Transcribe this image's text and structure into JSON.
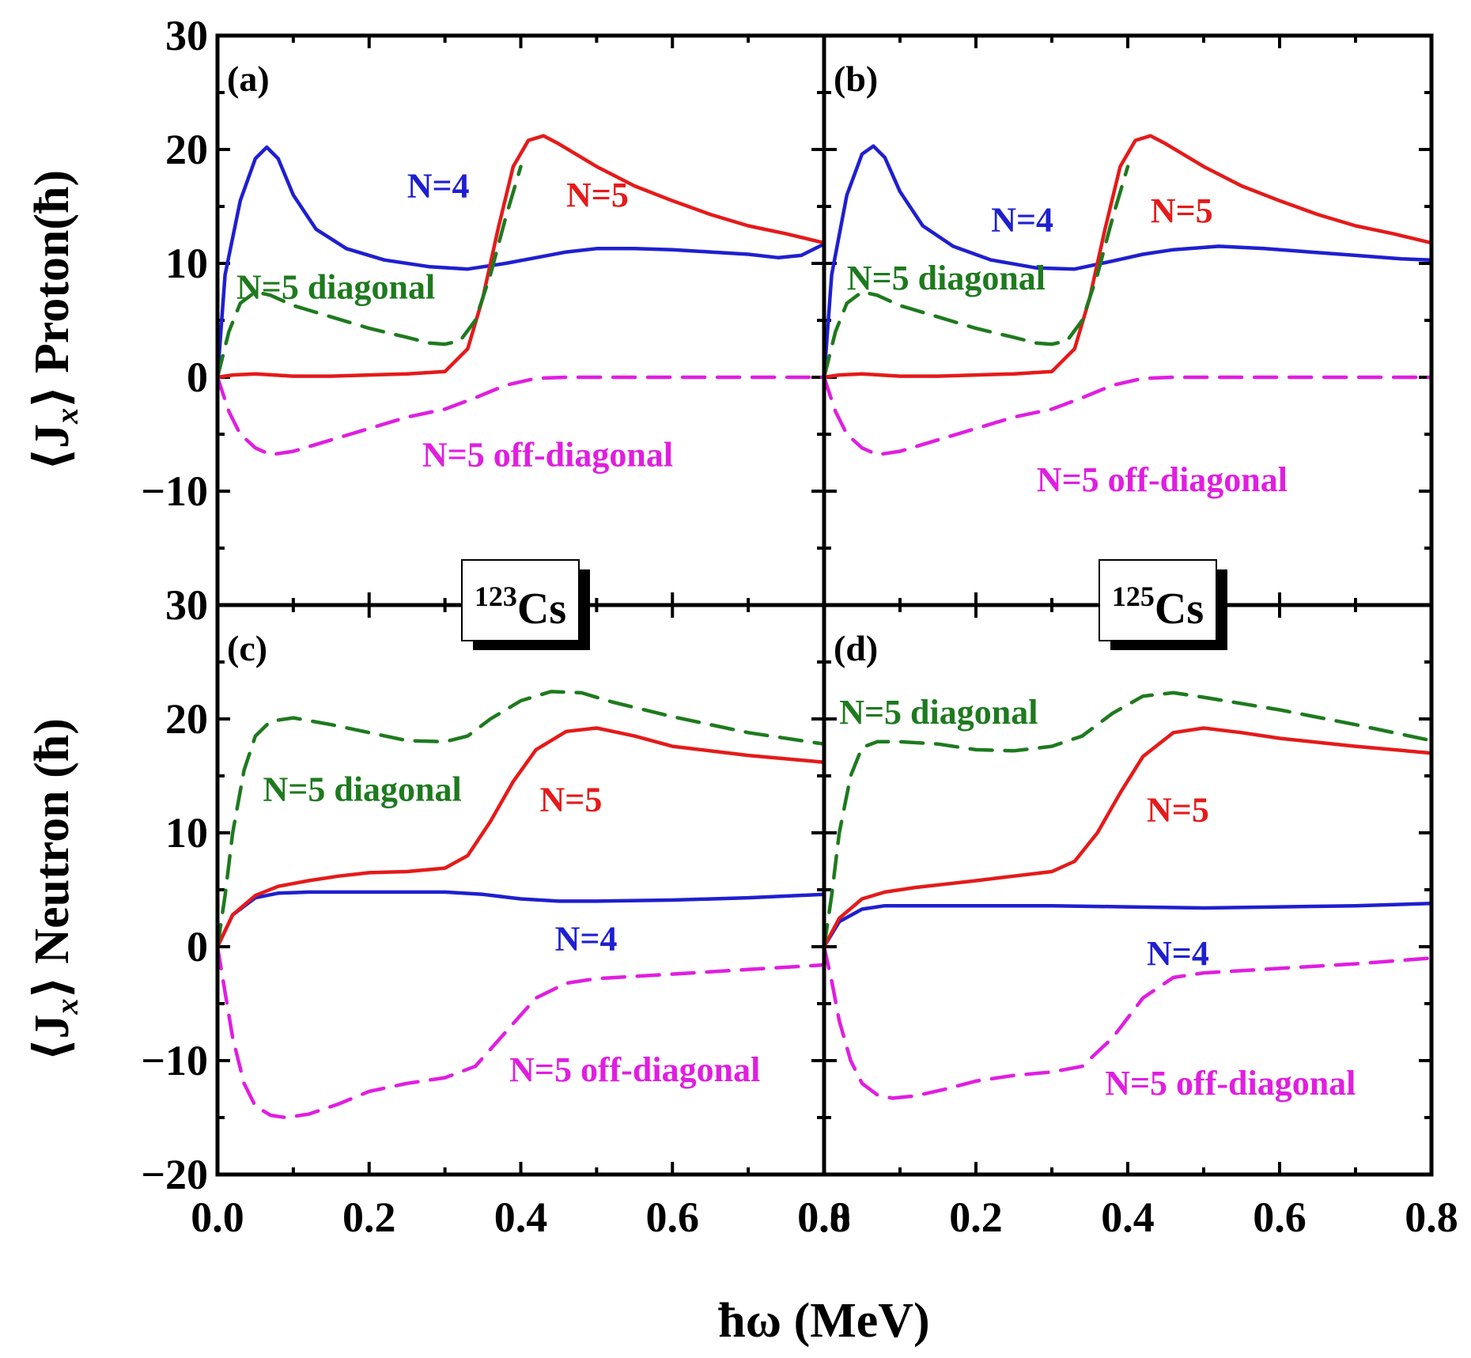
{
  "figure": {
    "x_title": "ħω (MeV)",
    "y_title_top": {
      "angle_expr": "⟨J",
      "sub": "x",
      "close": "⟩",
      "rest": " Proton(ħ)"
    },
    "y_title_bottom": {
      "angle_expr": "⟨J",
      "sub": "x",
      "close": "⟩",
      "rest": " Neutron (ħ)"
    },
    "nuclei": [
      {
        "mass": "123",
        "symbol": "Cs"
      },
      {
        "mass": "125",
        "symbol": "Cs"
      }
    ]
  },
  "colors": {
    "N=4": "#1f1fd0",
    "N=5": "#e51a1a",
    "N=5 diagonal": "#1e7a1e",
    "N=5 off-diagonal": "#e01ee0"
  },
  "chart_data": [
    {
      "panel": "(a)",
      "type": "line",
      "xlim": [
        0,
        0.8
      ],
      "ylim": [
        -20,
        30
      ],
      "xticks": [
        0.0,
        0.2,
        0.4,
        0.6,
        0.8
      ],
      "yticks": [
        30,
        20,
        10,
        0,
        -10
      ],
      "xlabel": "",
      "ylabel": "⟨Jx⟩ Proton(ħ)",
      "series": [
        {
          "name": "N=4",
          "style": "solid",
          "label_at": [
            0.25,
            15.8
          ],
          "x": [
            0,
            0.01,
            0.03,
            0.05,
            0.065,
            0.08,
            0.1,
            0.13,
            0.17,
            0.22,
            0.28,
            0.33,
            0.38,
            0.42,
            0.46,
            0.5,
            0.55,
            0.6,
            0.65,
            0.7,
            0.74,
            0.77,
            0.8
          ],
          "y": [
            0,
            9,
            15.5,
            19.2,
            20.2,
            19.2,
            16,
            13,
            11.3,
            10.3,
            9.7,
            9.5,
            10,
            10.5,
            11,
            11.3,
            11.3,
            11.2,
            11,
            10.8,
            10.5,
            10.7,
            11.7
          ]
        },
        {
          "name": "N=5",
          "style": "solid",
          "label_at": [
            0.46,
            15.0
          ],
          "x": [
            0,
            0.02,
            0.05,
            0.1,
            0.15,
            0.2,
            0.25,
            0.3,
            0.33,
            0.35,
            0.37,
            0.39,
            0.41,
            0.43,
            0.45,
            0.5,
            0.55,
            0.6,
            0.65,
            0.7,
            0.75,
            0.8
          ],
          "y": [
            0,
            0.2,
            0.3,
            0.1,
            0.1,
            0.2,
            0.3,
            0.5,
            2.5,
            7,
            13,
            18.5,
            20.8,
            21.2,
            20.5,
            18.5,
            16.8,
            15.5,
            14.3,
            13.3,
            12.6,
            11.8
          ]
        },
        {
          "name": "N=5 diagonal",
          "style": "dashed",
          "label_at": [
            0.025,
            6.9
          ],
          "x": [
            0,
            0.015,
            0.03,
            0.05,
            0.07,
            0.1,
            0.15,
            0.2,
            0.25,
            0.28,
            0.3,
            0.32,
            0.34,
            0.36,
            0.38,
            0.4
          ],
          "y": [
            0,
            4,
            6.5,
            7.5,
            7.2,
            6.3,
            5.3,
            4.3,
            3.5,
            3.0,
            2.9,
            3.2,
            5,
            9,
            14,
            18.5
          ]
        },
        {
          "name": "N=5 off-diagonal",
          "style": "dashed",
          "label_at": [
            0.27,
            -7.8
          ],
          "x": [
            0,
            0.015,
            0.03,
            0.05,
            0.07,
            0.1,
            0.15,
            0.2,
            0.25,
            0.3,
            0.34,
            0.38,
            0.42,
            0.46,
            0.5,
            0.6,
            0.7,
            0.8
          ],
          "y": [
            0,
            -3,
            -5,
            -6.2,
            -6.8,
            -6.5,
            -5.5,
            -4.5,
            -3.5,
            -2.8,
            -1.8,
            -0.7,
            -0.1,
            0,
            0,
            0,
            0,
            0
          ]
        }
      ]
    },
    {
      "panel": "(b)",
      "type": "line",
      "xlim": [
        0,
        0.8
      ],
      "ylim": [
        -20,
        30
      ],
      "xticks": [
        0.0,
        0.2,
        0.4,
        0.6,
        0.8
      ],
      "yticks": [],
      "xlabel": "",
      "ylabel": "",
      "series": [
        {
          "name": "N=4",
          "style": "solid",
          "label_at": [
            0.22,
            12.8
          ],
          "x": [
            0,
            0.01,
            0.03,
            0.05,
            0.065,
            0.08,
            0.1,
            0.13,
            0.17,
            0.22,
            0.28,
            0.33,
            0.38,
            0.42,
            0.46,
            0.52,
            0.58,
            0.64,
            0.7,
            0.76,
            0.8
          ],
          "y": [
            0,
            9,
            16,
            19.6,
            20.3,
            19.3,
            16.3,
            13.3,
            11.5,
            10.3,
            9.6,
            9.5,
            10.2,
            10.8,
            11.2,
            11.5,
            11.3,
            11.0,
            10.7,
            10.4,
            10.3
          ]
        },
        {
          "name": "N=5",
          "style": "solid",
          "label_at": [
            0.43,
            13.6
          ],
          "x": [
            0,
            0.02,
            0.05,
            0.1,
            0.15,
            0.2,
            0.25,
            0.3,
            0.33,
            0.35,
            0.37,
            0.39,
            0.41,
            0.43,
            0.45,
            0.5,
            0.55,
            0.6,
            0.65,
            0.7,
            0.75,
            0.8
          ],
          "y": [
            0,
            0.2,
            0.3,
            0.1,
            0.1,
            0.2,
            0.3,
            0.5,
            2.5,
            7,
            13,
            18.5,
            20.8,
            21.2,
            20.5,
            18.5,
            16.8,
            15.5,
            14.3,
            13.3,
            12.6,
            11.8
          ]
        },
        {
          "name": "N=5 diagonal",
          "style": "dashed",
          "label_at": [
            0.03,
            7.7
          ],
          "x": [
            0,
            0.015,
            0.03,
            0.05,
            0.07,
            0.1,
            0.15,
            0.2,
            0.25,
            0.28,
            0.3,
            0.32,
            0.34,
            0.36,
            0.38,
            0.4
          ],
          "y": [
            0,
            4,
            6.5,
            7.5,
            7.2,
            6.3,
            5.3,
            4.3,
            3.5,
            3.0,
            2.9,
            3.2,
            5,
            9,
            14,
            18.5
          ]
        },
        {
          "name": "N=5 off-diagonal",
          "style": "dashed",
          "label_at": [
            0.28,
            -10.0
          ],
          "x": [
            0,
            0.015,
            0.03,
            0.05,
            0.07,
            0.1,
            0.15,
            0.2,
            0.25,
            0.3,
            0.34,
            0.38,
            0.42,
            0.46,
            0.5,
            0.6,
            0.7,
            0.8
          ],
          "y": [
            0,
            -3,
            -5,
            -6.2,
            -6.8,
            -6.5,
            -5.5,
            -4.5,
            -3.5,
            -2.8,
            -1.8,
            -0.7,
            -0.1,
            0,
            0,
            0,
            0,
            0
          ]
        }
      ]
    },
    {
      "panel": "(c)",
      "type": "line",
      "xlim": [
        0,
        0.8
      ],
      "ylim": [
        -20,
        30
      ],
      "xticks": [
        0.0,
        0.2,
        0.4,
        0.6,
        0.8
      ],
      "yticks": [
        30,
        20,
        10,
        0,
        -10,
        -20
      ],
      "xlabel": "",
      "ylabel": "⟨Jx⟩ Neutron (ħ)",
      "series": [
        {
          "name": "N=4",
          "style": "solid",
          "label_at": [
            0.445,
            -0.3
          ],
          "x": [
            0,
            0.02,
            0.05,
            0.08,
            0.12,
            0.2,
            0.3,
            0.35,
            0.4,
            0.45,
            0.5,
            0.6,
            0.7,
            0.8
          ],
          "y": [
            0,
            2.8,
            4.3,
            4.7,
            4.8,
            4.8,
            4.8,
            4.6,
            4.2,
            4.0,
            4.0,
            4.1,
            4.3,
            4.6
          ]
        },
        {
          "name": "N=5",
          "style": "solid",
          "label_at": [
            0.425,
            11.9
          ],
          "x": [
            0,
            0.02,
            0.05,
            0.08,
            0.12,
            0.16,
            0.2,
            0.25,
            0.3,
            0.33,
            0.36,
            0.39,
            0.42,
            0.46,
            0.5,
            0.55,
            0.6,
            0.7,
            0.8
          ],
          "y": [
            0,
            2.8,
            4.5,
            5.3,
            5.8,
            6.2,
            6.5,
            6.6,
            6.9,
            8.0,
            11,
            14.5,
            17.3,
            18.9,
            19.2,
            18.5,
            17.6,
            16.8,
            16.2
          ]
        },
        {
          "name": "N=5 diagonal",
          "style": "dashed",
          "label_at": [
            0.06,
            12.8
          ],
          "x": [
            0,
            0.01,
            0.02,
            0.035,
            0.05,
            0.07,
            0.1,
            0.15,
            0.2,
            0.25,
            0.3,
            0.33,
            0.36,
            0.4,
            0.44,
            0.48,
            0.52,
            0.6,
            0.7,
            0.8
          ],
          "y": [
            0,
            4.5,
            10,
            15.5,
            18.5,
            19.8,
            20.1,
            19.5,
            18.8,
            18.1,
            18.0,
            18.5,
            20,
            21.6,
            22.4,
            22.3,
            21.5,
            20.2,
            18.8,
            17.8
          ]
        },
        {
          "name": "N=5 off-diagonal",
          "style": "dashed",
          "label_at": [
            0.385,
            -11.8
          ],
          "x": [
            0,
            0.01,
            0.02,
            0.035,
            0.05,
            0.07,
            0.09,
            0.12,
            0.16,
            0.2,
            0.25,
            0.3,
            0.34,
            0.38,
            0.42,
            0.46,
            0.5,
            0.6,
            0.7,
            0.8
          ],
          "y": [
            0,
            -4,
            -8,
            -12,
            -14,
            -14.8,
            -15,
            -14.7,
            -13.8,
            -12.7,
            -12,
            -11.5,
            -10.5,
            -7.5,
            -4.5,
            -3.2,
            -2.8,
            -2.4,
            -2.0,
            -1.6
          ]
        }
      ]
    },
    {
      "panel": "(d)",
      "type": "line",
      "xlim": [
        0,
        0.8
      ],
      "ylim": [
        -20,
        30
      ],
      "xticks": [
        0.0,
        0.2,
        0.4,
        0.6,
        0.8
      ],
      "yticks": [],
      "xlabel": "",
      "ylabel": "",
      "series": [
        {
          "name": "N=4",
          "style": "solid",
          "label_at": [
            0.425,
            -1.6
          ],
          "x": [
            0,
            0.02,
            0.05,
            0.08,
            0.12,
            0.2,
            0.3,
            0.4,
            0.5,
            0.6,
            0.7,
            0.8
          ],
          "y": [
            0,
            2.2,
            3.3,
            3.6,
            3.6,
            3.6,
            3.6,
            3.5,
            3.4,
            3.5,
            3.6,
            3.8
          ]
        },
        {
          "name": "N=5",
          "style": "solid",
          "label_at": [
            0.425,
            11.0
          ],
          "x": [
            0,
            0.02,
            0.05,
            0.08,
            0.12,
            0.16,
            0.2,
            0.25,
            0.3,
            0.33,
            0.36,
            0.39,
            0.42,
            0.46,
            0.5,
            0.55,
            0.6,
            0.7,
            0.8
          ],
          "y": [
            0,
            2.5,
            4.2,
            4.8,
            5.2,
            5.5,
            5.8,
            6.2,
            6.6,
            7.5,
            10,
            13.5,
            16.7,
            18.8,
            19.2,
            18.8,
            18.3,
            17.6,
            17.0
          ]
        },
        {
          "name": "N=5 diagonal",
          "style": "dashed",
          "label_at": [
            0.02,
            19.6
          ],
          "x": [
            0,
            0.01,
            0.02,
            0.035,
            0.05,
            0.07,
            0.1,
            0.15,
            0.2,
            0.25,
            0.3,
            0.34,
            0.38,
            0.42,
            0.46,
            0.5,
            0.6,
            0.7,
            0.8
          ],
          "y": [
            0,
            4.5,
            10,
            15,
            17.5,
            18.0,
            18.0,
            17.8,
            17.3,
            17.2,
            17.6,
            18.5,
            20.5,
            22.0,
            22.3,
            21.9,
            20.8,
            19.5,
            18.1
          ]
        },
        {
          "name": "N=5 off-diagonal",
          "style": "dashed",
          "label_at": [
            0.37,
            -13.0
          ],
          "x": [
            0,
            0.01,
            0.02,
            0.035,
            0.05,
            0.07,
            0.09,
            0.12,
            0.16,
            0.2,
            0.25,
            0.3,
            0.34,
            0.38,
            0.42,
            0.46,
            0.5,
            0.6,
            0.7,
            0.8
          ],
          "y": [
            0,
            -3,
            -6.5,
            -10,
            -12,
            -13,
            -13.3,
            -13.1,
            -12.5,
            -11.8,
            -11.3,
            -11.0,
            -10.5,
            -8.0,
            -4.5,
            -2.7,
            -2.3,
            -1.9,
            -1.5,
            -1.0
          ]
        }
      ]
    }
  ]
}
